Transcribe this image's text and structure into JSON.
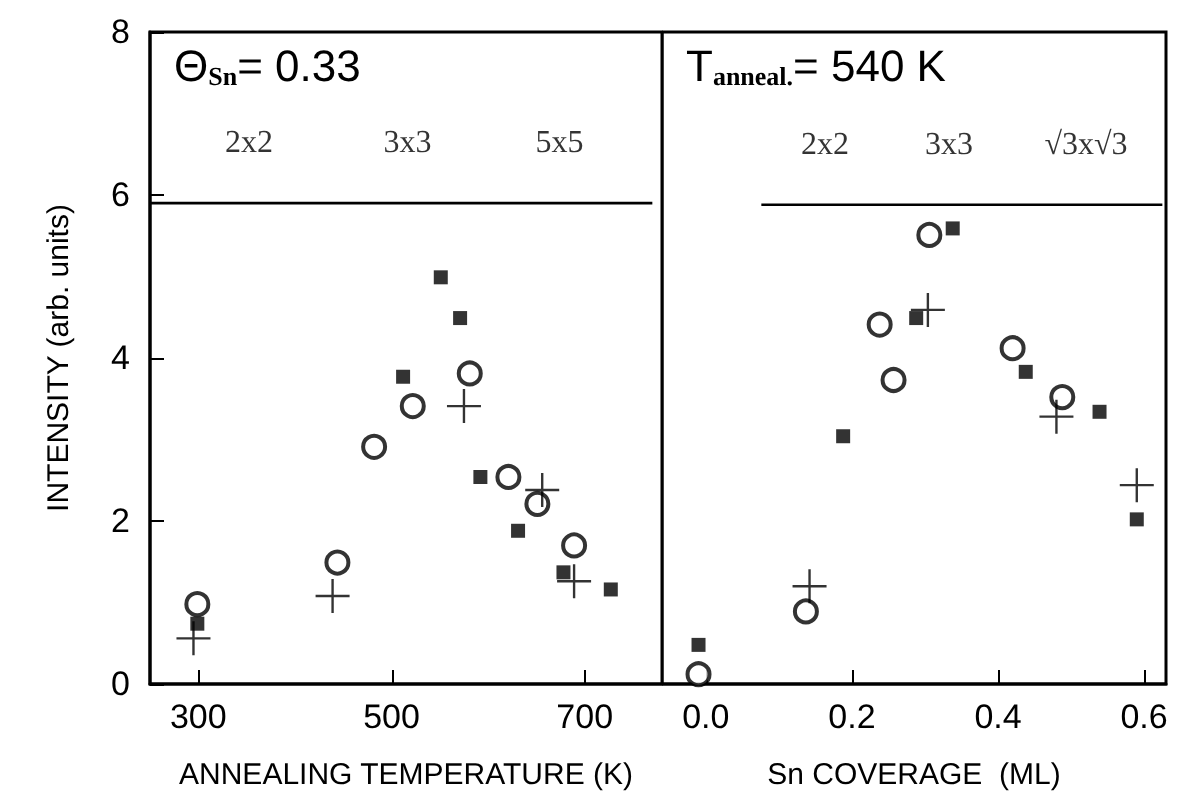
{
  "chart_data": [
    {
      "type": "scatter",
      "xlabel": "ANNEALING TEMPERATURE (K)",
      "ylabel": "INTENSITY (arb. units)",
      "xlim": [
        250,
        780
      ],
      "xticks": [
        300,
        500,
        700
      ],
      "ylim": [
        0,
        8
      ],
      "yticks": [
        0,
        2,
        4,
        6,
        8
      ],
      "grid": false,
      "annotations": [
        "Θ$_{Sn}$= 0.33",
        "2x2",
        "3x3",
        "5x5"
      ],
      "series": [
        {
          "marker": "square",
          "color": "#000000",
          "x": [
            299,
            551,
            571,
            512,
            592,
            631,
            678,
            727
          ],
          "values": [
            0.74,
            4.99,
            4.49,
            3.77,
            2.54,
            1.88,
            1.37,
            1.16
          ]
        },
        {
          "marker": "circle",
          "color": "#000000",
          "x": [
            299,
            444,
            482,
            522,
            581,
            621,
            651,
            689
          ],
          "values": [
            0.98,
            1.49,
            2.91,
            3.41,
            3.81,
            2.54,
            2.21,
            1.7
          ]
        },
        {
          "marker": "cross",
          "color": "#000000",
          "x": [
            295,
            439,
            575,
            656,
            689
          ],
          "values": [
            0.56,
            1.08,
            3.41,
            2.38,
            1.26
          ]
        },
        {
          "type": "line",
          "marker": "none",
          "color": "#000000",
          "x": [
            250,
            455,
            578,
            770
          ],
          "values": [
            5.9,
            5.9,
            5.9,
            5.9
          ]
        }
      ]
    },
    {
      "type": "scatter",
      "xlabel": "Sn COVERAGE  (ML)",
      "xlim": [
        -0.06,
        0.63
      ],
      "xticks": [
        {
          "value": 0,
          "label": "0.0"
        },
        {
          "value": 0.2,
          "label": "0.2"
        },
        {
          "value": 0.4,
          "label": "0.4"
        },
        {
          "value": 0.6,
          "label": "0.6"
        }
      ],
      "ylim": [
        0,
        8
      ],
      "yticks": [
        0,
        2,
        4,
        6,
        8
      ],
      "tick_labels": "x",
      "grid": false,
      "annotations": [
        "T$_{anneal.}$= 540 K",
        "2x2",
        "3x3",
        "√3x√3"
      ],
      "series": [
        {
          "marker": "square",
          "color": "#000000",
          "x": [
            -0.01,
            0.188,
            0.288,
            0.338,
            0.438,
            0.539,
            0.59
          ],
          "values": [
            0.48,
            3.04,
            4.49,
            5.59,
            3.83,
            3.34,
            2.02
          ]
        },
        {
          "marker": "circle",
          "color": "#000000",
          "x": [
            -0.01,
            0.137,
            0.238,
            0.257,
            0.306,
            0.42,
            0.488
          ],
          "values": [
            0.12,
            0.89,
            4.41,
            3.73,
            5.51,
            4.12,
            3.52
          ]
        },
        {
          "marker": "cross",
          "color": "#000000",
          "x": [
            0.142,
            0.304,
            0.48,
            0.59
          ],
          "values": [
            1.2,
            4.59,
            3.28,
            2.44
          ]
        },
        {
          "type": "line",
          "marker": "none",
          "color": "#000000",
          "x": [
            0.076,
            0.25,
            0.416,
            0.625
          ],
          "values": [
            5.88,
            5.88,
            5.88,
            5.88
          ]
        }
      ]
    }
  ]
}
